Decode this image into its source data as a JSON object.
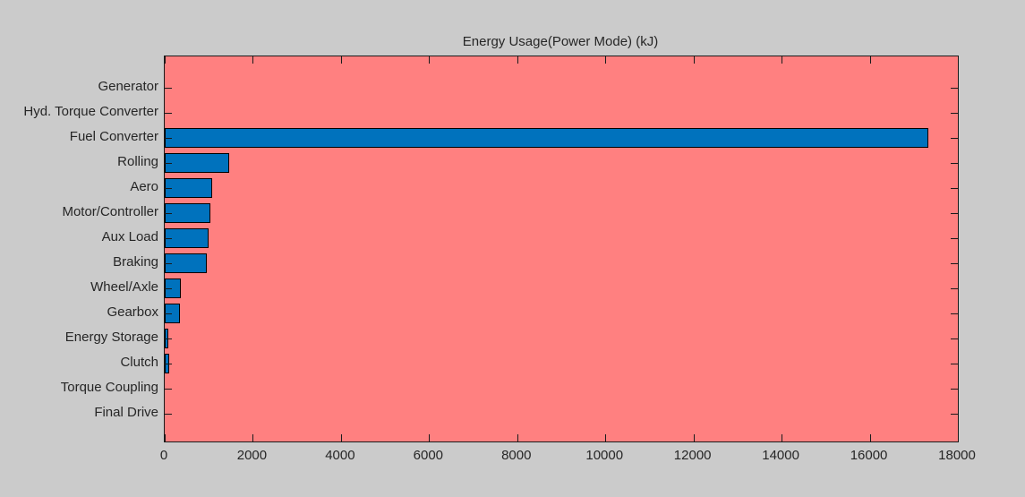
{
  "chart_data": {
    "type": "bar",
    "orientation": "horizontal",
    "title": "Energy Usage(Power Mode) (kJ)",
    "categories": [
      "Generator",
      "Hyd. Torque Converter",
      "Fuel Converter",
      "Rolling",
      "Aero",
      "Motor/Controller",
      "Aux Load",
      "Braking",
      "Wheel/Axle",
      "Gearbox",
      "Energy Storage",
      "Clutch",
      "Torque Coupling",
      "Final Drive"
    ],
    "values": [
      0,
      0,
      17320,
      1460,
      1080,
      1030,
      990,
      950,
      370,
      350,
      90,
      110,
      0,
      0
    ],
    "xlabel": "",
    "ylabel": "",
    "xlim": [
      0,
      18000
    ],
    "x_ticks": [
      0,
      2000,
      4000,
      6000,
      8000,
      10000,
      12000,
      14000,
      16000,
      18000
    ],
    "x_tick_labels": [
      "0",
      "2000",
      "4000",
      "6000",
      "8000",
      "10000",
      "12000",
      "14000",
      "16000",
      "18000"
    ],
    "grid": false,
    "legend": null,
    "colors": {
      "figure_background": "#CBCBCB",
      "plot_background": "#FF8080",
      "bar_fill": "#0072BD",
      "bar_edge": "#000000",
      "axis": "#1a1a1a",
      "text": "#262626"
    }
  }
}
